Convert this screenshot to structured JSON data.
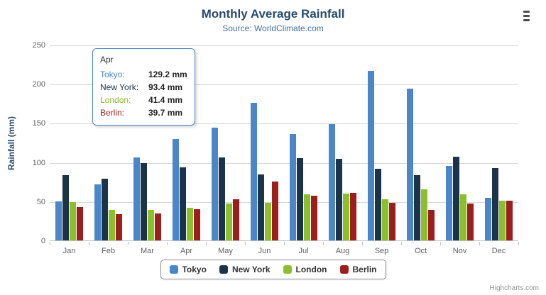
{
  "header": {
    "title": "Monthly Average Rainfall",
    "subtitle": "Source: WorldClimate.com"
  },
  "credit": "Highcharts.com",
  "chart_data": {
    "type": "bar",
    "title": "Monthly Average Rainfall",
    "subtitle": "Source: WorldClimate.com",
    "xlabel": "",
    "ylabel": "Rainfall (mm)",
    "ylim": [
      0,
      250
    ],
    "yticks": [
      0,
      50,
      100,
      150,
      200,
      250
    ],
    "grid": true,
    "legend_position": "bottom",
    "categories": [
      "Jan",
      "Feb",
      "Mar",
      "Apr",
      "May",
      "Jun",
      "Jul",
      "Aug",
      "Sep",
      "Oct",
      "Nov",
      "Dec"
    ],
    "series": [
      {
        "name": "Tokyo",
        "color": "#4a86c8",
        "values": [
          49.9,
          71.5,
          106.4,
          129.2,
          144.0,
          176.0,
          135.6,
          148.5,
          216.4,
          194.1,
          95.6,
          54.4
        ]
      },
      {
        "name": "New York",
        "color": "#1b3449",
        "values": [
          83.6,
          78.8,
          98.5,
          93.4,
          106.0,
          84.5,
          105.0,
          104.3,
          91.2,
          83.5,
          106.6,
          92.3
        ]
      },
      {
        "name": "London",
        "color": "#8cbf2e",
        "values": [
          48.9,
          38.8,
          39.3,
          41.4,
          47.0,
          48.3,
          59.0,
          59.6,
          52.4,
          65.2,
          59.3,
          51.2
        ]
      },
      {
        "name": "Berlin",
        "color": "#9c1f1f",
        "values": [
          42.4,
          33.2,
          34.5,
          39.7,
          52.6,
          75.5,
          57.4,
          60.4,
          47.6,
          39.1,
          46.8,
          51.1
        ]
      }
    ]
  },
  "tooltip": {
    "title": "Apr",
    "rows": [
      {
        "label": "Tokyo:",
        "value": "129.2 mm"
      },
      {
        "label": "New York:",
        "value": "93.4 mm"
      },
      {
        "label": "London:",
        "value": "41.4 mm"
      },
      {
        "label": "Berlin:",
        "value": "39.7 mm"
      }
    ]
  }
}
